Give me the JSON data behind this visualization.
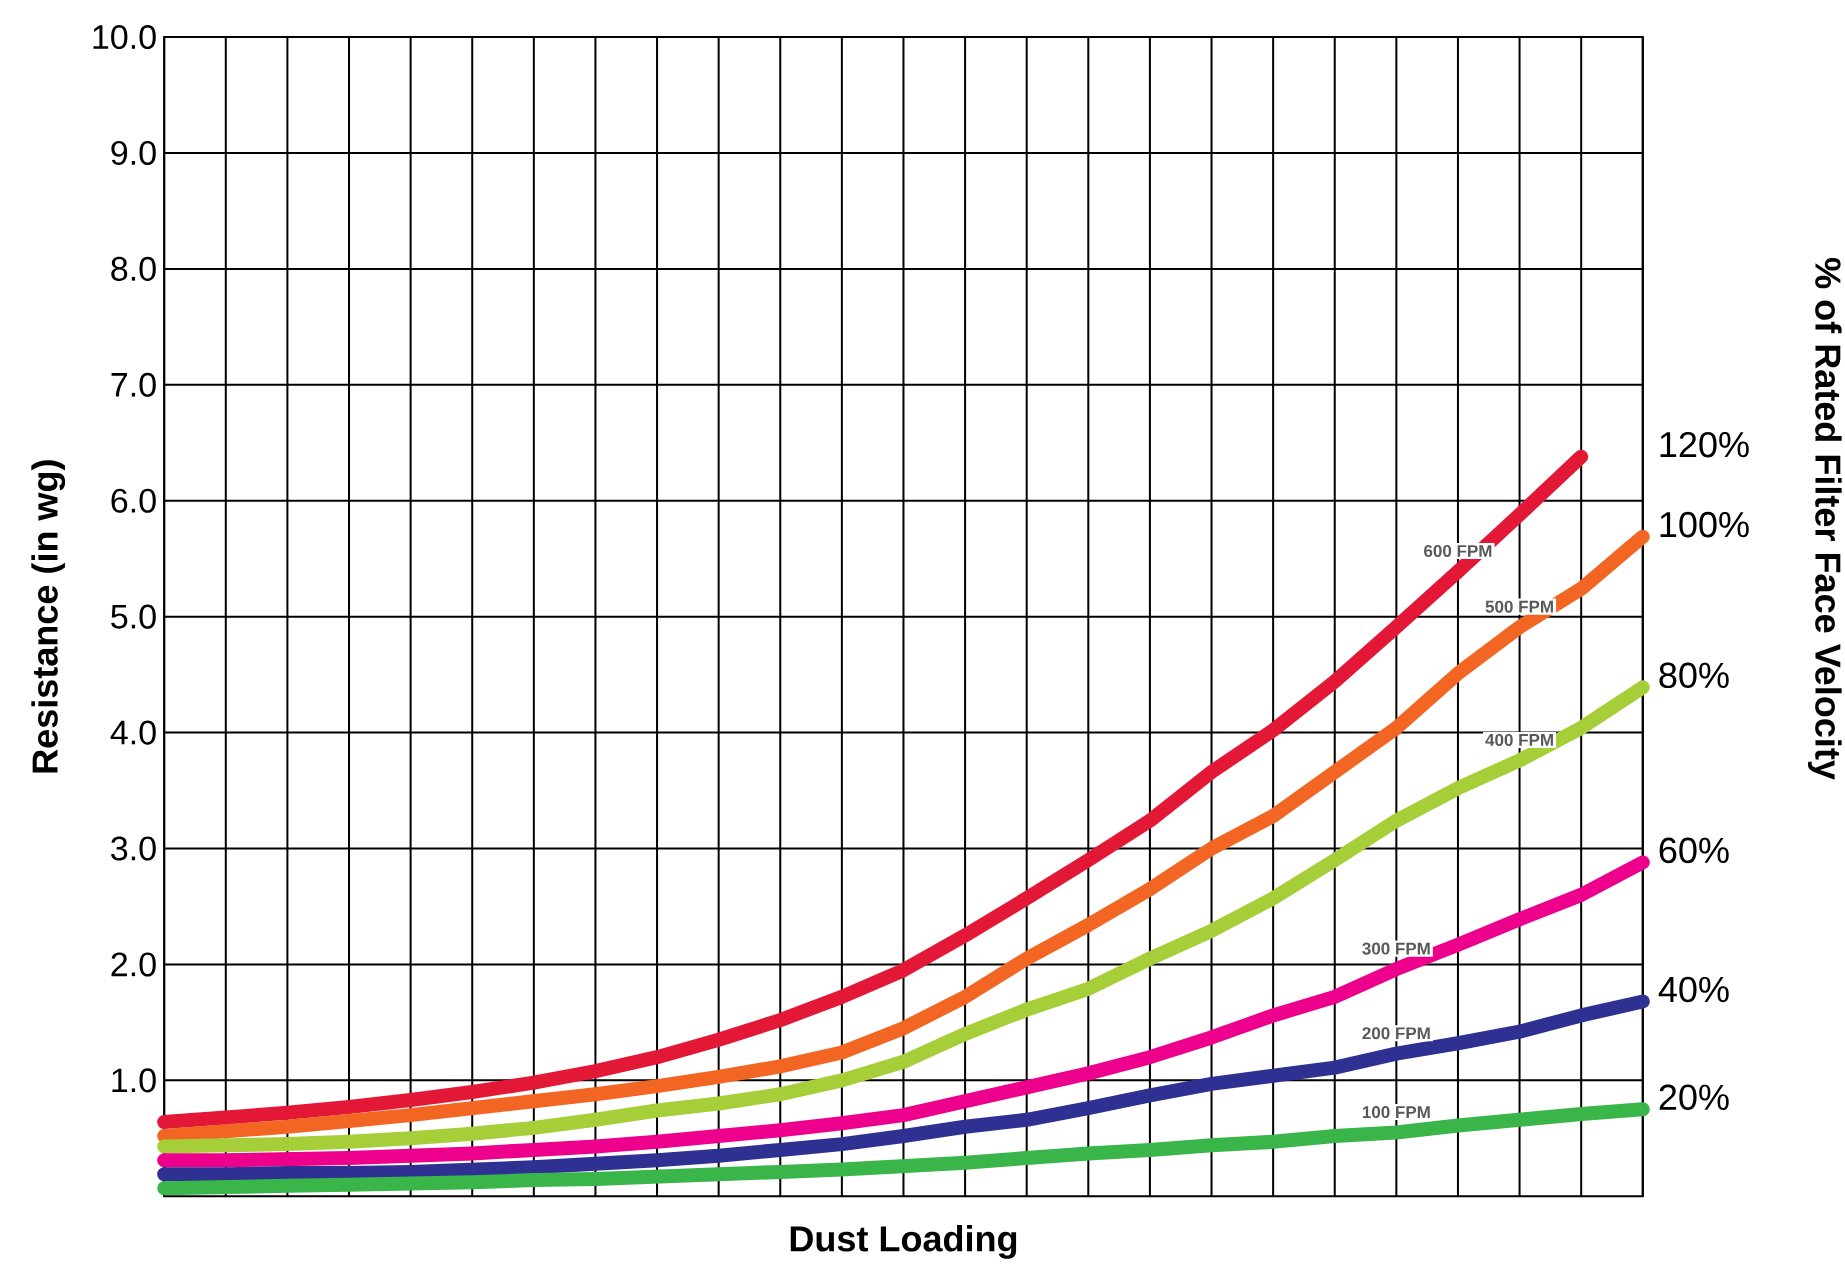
{
  "chart_data": {
    "type": "line",
    "xlabel": "Dust Loading",
    "ylabel": "Resistance (in wg)",
    "y2label": "% of Rated Filter Face Velocity",
    "categories": [
      null,
      null,
      null,
      null,
      null,
      null,
      null,
      null,
      null,
      null,
      null,
      null,
      null,
      null,
      null,
      null,
      null,
      null,
      null,
      null,
      null,
      null,
      null,
      null,
      null
    ],
    "ylim": [
      0,
      10
    ],
    "yticks": [
      {
        "value": 1,
        "label": "1.0"
      },
      {
        "value": 2,
        "label": "2.0"
      },
      {
        "value": 3,
        "label": "3.0"
      },
      {
        "value": 4,
        "label": "4.0"
      },
      {
        "value": 5,
        "label": "5.0"
      },
      {
        "value": 6,
        "label": "6.0"
      },
      {
        "value": 7,
        "label": "7.0"
      },
      {
        "value": 8,
        "label": "8.0"
      },
      {
        "value": 9,
        "label": "9.0"
      },
      {
        "value": 10,
        "label": "10.0"
      }
    ],
    "grid": true,
    "series": [
      {
        "name": "600 FPM",
        "color": "#e31837",
        "values": [
          0.64,
          0.68,
          0.72,
          0.77,
          0.83,
          0.9,
          0.98,
          1.08,
          1.2,
          1.35,
          1.52,
          1.72,
          1.95,
          2.25,
          2.57,
          2.9,
          3.24,
          3.66,
          4.02,
          4.44,
          4.91,
          5.39,
          5.88,
          6.38,
          null
        ]
      },
      {
        "name": "500 FPM",
        "color": "#f26522",
        "values": [
          0.52,
          0.56,
          0.6,
          0.65,
          0.7,
          0.76,
          0.82,
          0.88,
          0.95,
          1.03,
          1.12,
          1.24,
          1.45,
          1.72,
          2.05,
          2.34,
          2.65,
          3.0,
          3.28,
          3.66,
          4.04,
          4.51,
          4.91,
          5.24,
          5.69
        ]
      },
      {
        "name": "400 FPM",
        "color": "#a6ce39",
        "values": [
          0.43,
          0.44,
          0.45,
          0.47,
          0.5,
          0.54,
          0.59,
          0.66,
          0.74,
          0.8,
          0.88,
          1.0,
          1.16,
          1.4,
          1.61,
          1.79,
          2.05,
          2.29,
          2.57,
          2.9,
          3.24,
          3.52,
          3.76,
          4.04,
          4.39
        ]
      },
      {
        "name": "300 FPM",
        "color": "#ec008c",
        "values": [
          0.31,
          0.31,
          0.32,
          0.33,
          0.35,
          0.37,
          0.4,
          0.43,
          0.47,
          0.52,
          0.57,
          0.63,
          0.7,
          0.82,
          0.94,
          1.06,
          1.2,
          1.37,
          1.56,
          1.72,
          1.96,
          2.17,
          2.39,
          2.6,
          2.88
        ]
      },
      {
        "name": "200 FPM",
        "color": "#2e3192",
        "values": [
          0.19,
          0.19,
          0.2,
          0.2,
          0.21,
          0.23,
          0.25,
          0.28,
          0.31,
          0.35,
          0.4,
          0.45,
          0.52,
          0.6,
          0.66,
          0.76,
          0.87,
          0.97,
          1.04,
          1.11,
          1.23,
          1.32,
          1.42,
          1.56,
          1.68
        ]
      },
      {
        "name": "100 FPM",
        "color": "#39b54a",
        "values": [
          0.07,
          0.08,
          0.09,
          0.1,
          0.11,
          0.12,
          0.14,
          0.15,
          0.17,
          0.19,
          0.21,
          0.23,
          0.26,
          0.29,
          0.33,
          0.37,
          0.4,
          0.44,
          0.47,
          0.52,
          0.55,
          0.61,
          0.66,
          0.71,
          0.75
        ]
      }
    ],
    "annotations": [
      "120%",
      "100%",
      "80%",
      "60%",
      "40%",
      "20%"
    ]
  }
}
